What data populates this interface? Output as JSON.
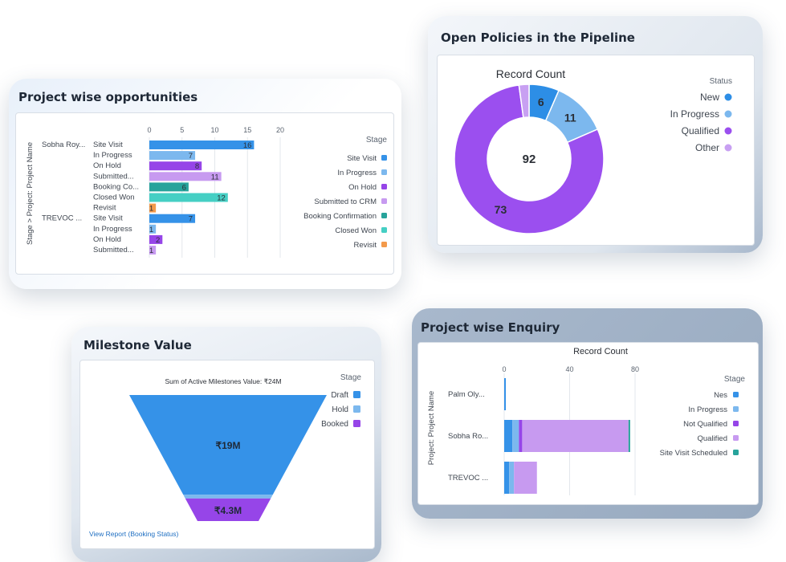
{
  "project_opps": {
    "title": "Project wise opportunities",
    "axis_label": "Stage > Project: Project Name",
    "legend_title": "Stage",
    "legend": [
      {
        "name": "Site Visit",
        "color": "#3592e8"
      },
      {
        "name": "In Progress",
        "color": "#7cb8ee"
      },
      {
        "name": "On Hold",
        "color": "#9645e8"
      },
      {
        "name": "Submitted to CRM",
        "color": "#c79af0"
      },
      {
        "name": "Booking Confirmation",
        "color": "#27a39b"
      },
      {
        "name": "Closed Won",
        "color": "#45cfc4"
      },
      {
        "name": "Revisit",
        "color": "#f39a4b"
      }
    ]
  },
  "open_policies": {
    "title": "Open Policies in the Pipeline",
    "legend_title": "Status",
    "legend": [
      {
        "name": "New",
        "color": "#2d8ee6"
      },
      {
        "name": "In Progress",
        "color": "#7cb8ee"
      },
      {
        "name": "Qualified",
        "color": "#9b4fef"
      },
      {
        "name": "Other",
        "color": "#c8a0f2"
      }
    ]
  },
  "milestone": {
    "title": "Milestone Value",
    "legend_title": "Stage",
    "legend": [
      {
        "name": "Draft",
        "color": "#3592e8"
      },
      {
        "name": "Hold",
        "color": "#7cb8ee"
      },
      {
        "name": "Booked",
        "color": "#9645e8"
      }
    ],
    "link": "View Report (Booking Status)"
  },
  "enquiry": {
    "title": "Project wise Enquiry",
    "legend_title": "Stage",
    "legend": [
      {
        "name": "Nes",
        "color": "#3592e8"
      },
      {
        "name": "In Progress",
        "color": "#7cb8ee"
      },
      {
        "name": "Not Qualified",
        "color": "#9645e8"
      },
      {
        "name": "Qualified",
        "color": "#c79af0"
      },
      {
        "name": "Site Visit Scheduled",
        "color": "#27a39b"
      }
    ]
  },
  "chart_data": [
    {
      "type": "bar",
      "orientation": "horizontal",
      "title": "Project wise opportunities",
      "ylabel": "Stage > Project: Project Name",
      "xlim": [
        0,
        20
      ],
      "xticks": [
        "0",
        "5",
        "10",
        "15",
        "20"
      ],
      "groups": [
        {
          "project": "Sobha Roy...",
          "bars": [
            {
              "stage": "Site Visit",
              "value": 16,
              "color": "#3592e8"
            },
            {
              "stage": "In Progress",
              "value": 7,
              "color": "#7cb8ee"
            },
            {
              "stage": "On Hold",
              "value": 8,
              "color": "#9645e8"
            },
            {
              "stage": "Submitted...",
              "value": 11,
              "color": "#c79af0"
            },
            {
              "stage": "Booking Co...",
              "value": 6,
              "color": "#27a39b"
            },
            {
              "stage": "Closed Won",
              "value": 12,
              "color": "#45cfc4"
            },
            {
              "stage": "Revisit",
              "value": 1,
              "color": "#f39a4b"
            }
          ]
        },
        {
          "project": "TREVOC ...",
          "bars": [
            {
              "stage": "Site Visit",
              "value": 7,
              "color": "#3592e8"
            },
            {
              "stage": "In Progress",
              "value": 1,
              "color": "#7cb8ee"
            },
            {
              "stage": "On Hold",
              "value": 2,
              "color": "#9645e8"
            },
            {
              "stage": "Submitted...",
              "value": 1,
              "color": "#c79af0"
            }
          ]
        }
      ],
      "legend_position": "right"
    },
    {
      "type": "pie",
      "donut": true,
      "title": "Record Count",
      "center_label": "92",
      "slices": [
        {
          "name": "New",
          "value": 6,
          "color": "#2d8ee6"
        },
        {
          "name": "In Progress",
          "value": 11,
          "color": "#7cb8ee"
        },
        {
          "name": "Qualified",
          "value": 73,
          "color": "#9b4fef"
        },
        {
          "name": "Other",
          "value": 2,
          "color": "#c8a0f2"
        }
      ],
      "legend_position": "right"
    },
    {
      "type": "funnel",
      "title": "Sum of Active Milestones Value: ₹24M",
      "stages": [
        {
          "name": "Draft",
          "value": 19,
          "label": "₹19M",
          "color": "#3592e8"
        },
        {
          "name": "Hold",
          "value": 0.7,
          "label": "",
          "color": "#7cb8ee"
        },
        {
          "name": "Booked",
          "value": 4.3,
          "label": "₹4.3M",
          "color": "#9645e8"
        }
      ],
      "legend_position": "right"
    },
    {
      "type": "bar",
      "orientation": "horizontal",
      "stacked": true,
      "title": "Record Count",
      "ylabel": "Project: Project Name",
      "xlim": [
        0,
        80
      ],
      "xticks": [
        "0",
        "40",
        "80"
      ],
      "categories": [
        "Palm Oly...",
        "Sobha Ro...",
        "TREVOC ..."
      ],
      "series": [
        {
          "name": "Nes",
          "color": "#3592e8",
          "values": [
            1,
            5,
            3
          ]
        },
        {
          "name": "In Progress",
          "color": "#7cb8ee",
          "values": [
            0,
            4,
            3
          ]
        },
        {
          "name": "Not Qualified",
          "color": "#9645e8",
          "values": [
            0,
            2,
            0
          ]
        },
        {
          "name": "Qualified",
          "color": "#c79af0",
          "values": [
            0,
            65,
            14
          ]
        },
        {
          "name": "Site Visit Scheduled",
          "color": "#27a39b",
          "values": [
            0,
            1,
            0
          ]
        }
      ],
      "legend_position": "right"
    }
  ]
}
